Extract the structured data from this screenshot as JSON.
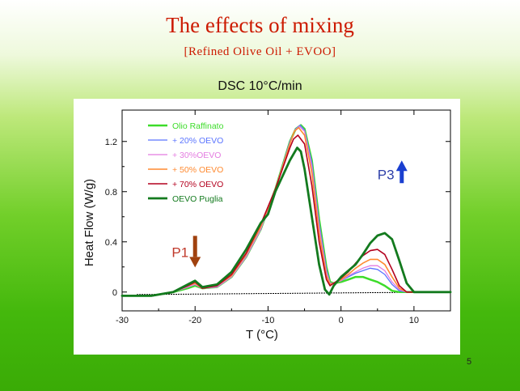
{
  "slide": {
    "title": "The effects of mixing",
    "subtitle": "[Refined Olive Oil + EVOO]",
    "page_number": "5"
  },
  "chart_data": {
    "type": "line",
    "title": "DSC 10°C/min",
    "xlabel": "T  (°C)",
    "ylabel": "Heat Flow  (W/g)",
    "xlim": [
      -30,
      15
    ],
    "ylim": [
      -0.15,
      1.45
    ],
    "xticks": [
      -30,
      -20,
      -10,
      0,
      10
    ],
    "yticks": [
      0,
      0.4,
      0.8,
      1.2
    ],
    "ytick_labels": [
      "0",
      "0.4",
      "0.8",
      "1.2"
    ],
    "legend_position": "top-left",
    "annotations": [
      {
        "text": "P1",
        "x": -20,
        "y": 0.28,
        "arrow": "down",
        "color": "#c0392b",
        "arrow_color": "#a0410e"
      },
      {
        "text": "P3",
        "x": 5,
        "y": 0.9,
        "arrow": "up",
        "color": "#2e3fa8",
        "arrow_color": "#1a3fd0"
      }
    ],
    "baseline": {
      "x": [
        -28,
        15
      ],
      "y": [
        -0.02,
        0.0
      ],
      "color": "#000000"
    },
    "series": [
      {
        "name": "Olio Raffinato",
        "color": "#3ddc2a",
        "width": 2.5,
        "x": [
          -30,
          -26,
          -23,
          -21,
          -20,
          -19,
          -17,
          -15,
          -13,
          -11,
          -9,
          -7,
          -6.2,
          -5.5,
          -5,
          -4,
          -3,
          -2,
          -1.5,
          -1,
          0,
          1,
          2,
          3,
          4,
          5,
          6,
          7,
          8,
          9,
          10,
          12,
          15
        ],
        "y": [
          -0.03,
          -0.03,
          0.0,
          0.03,
          0.05,
          0.03,
          0.04,
          0.12,
          0.28,
          0.5,
          0.82,
          1.2,
          1.3,
          1.33,
          1.3,
          1.05,
          0.58,
          0.2,
          0.08,
          0.07,
          0.08,
          0.1,
          0.12,
          0.12,
          0.1,
          0.08,
          0.05,
          0.01,
          0.0,
          0.0,
          0.0,
          0.0,
          0.0
        ]
      },
      {
        "name": "+ 20% OEVO",
        "color": "#5a74ff",
        "width": 1.3,
        "x": [
          -30,
          -26,
          -23,
          -21,
          -20,
          -19,
          -17,
          -15,
          -13,
          -11,
          -9,
          -7,
          -6.2,
          -5.6,
          -5,
          -4,
          -3,
          -2,
          -1.5,
          -1,
          0,
          1,
          2,
          3,
          4,
          5,
          6,
          7,
          8,
          9,
          10,
          12,
          15
        ],
        "y": [
          -0.03,
          -0.03,
          0.0,
          0.04,
          0.06,
          0.03,
          0.04,
          0.12,
          0.28,
          0.5,
          0.82,
          1.2,
          1.3,
          1.33,
          1.29,
          1.03,
          0.55,
          0.18,
          0.07,
          0.07,
          0.09,
          0.12,
          0.15,
          0.17,
          0.19,
          0.18,
          0.14,
          0.06,
          0.01,
          0.0,
          0.0,
          0.0,
          0.0
        ]
      },
      {
        "name": "+ 30%OEVO",
        "color": "#e47be0",
        "width": 1.3,
        "x": [
          -30,
          -26,
          -23,
          -21,
          -20,
          -19,
          -17,
          -15,
          -13,
          -11,
          -9,
          -7,
          -6.3,
          -5.7,
          -5,
          -4,
          -3,
          -2,
          -1.5,
          -1,
          0,
          1,
          2,
          3,
          4,
          5,
          6,
          7,
          8,
          9,
          10,
          12,
          15
        ],
        "y": [
          -0.03,
          -0.03,
          0.0,
          0.04,
          0.06,
          0.03,
          0.04,
          0.12,
          0.28,
          0.5,
          0.82,
          1.19,
          1.29,
          1.32,
          1.28,
          1.0,
          0.52,
          0.16,
          0.07,
          0.07,
          0.09,
          0.13,
          0.16,
          0.19,
          0.21,
          0.21,
          0.17,
          0.08,
          0.02,
          0.0,
          0.0,
          0.0,
          0.0
        ]
      },
      {
        "name": "+ 50% OEVO",
        "color": "#ff8a30",
        "width": 1.6,
        "x": [
          -30,
          -26,
          -23,
          -21,
          -20,
          -19,
          -17,
          -15,
          -13,
          -11,
          -9,
          -7,
          -6.4,
          -5.8,
          -5,
          -4,
          -3,
          -2,
          -1.5,
          -1,
          0,
          1,
          2,
          3,
          4,
          5,
          6,
          7,
          8,
          9,
          10,
          12,
          15
        ],
        "y": [
          -0.03,
          -0.03,
          0.0,
          0.05,
          0.07,
          0.03,
          0.05,
          0.13,
          0.3,
          0.52,
          0.82,
          1.18,
          1.28,
          1.31,
          1.25,
          0.95,
          0.47,
          0.13,
          0.06,
          0.07,
          0.1,
          0.14,
          0.19,
          0.23,
          0.26,
          0.26,
          0.22,
          0.12,
          0.03,
          0.0,
          0.0,
          0.0,
          0.0
        ]
      },
      {
        "name": "+ 70% OEVO",
        "color": "#b3001e",
        "width": 1.6,
        "x": [
          -30,
          -26,
          -23,
          -21,
          -20,
          -19,
          -17,
          -15,
          -13,
          -11,
          -9,
          -7,
          -6.5,
          -5.9,
          -5,
          -4,
          -3,
          -2,
          -1.5,
          -1,
          0,
          1,
          2,
          3,
          4,
          5,
          6,
          7,
          8,
          9,
          10,
          12,
          15
        ],
        "y": [
          -0.03,
          -0.03,
          0.0,
          0.05,
          0.08,
          0.03,
          0.05,
          0.14,
          0.31,
          0.54,
          0.82,
          1.15,
          1.22,
          1.25,
          1.18,
          0.85,
          0.4,
          0.1,
          0.05,
          0.07,
          0.11,
          0.16,
          0.23,
          0.29,
          0.33,
          0.34,
          0.3,
          0.18,
          0.05,
          0.0,
          0.0,
          0.0,
          0.0
        ]
      },
      {
        "name": "OEVO Puglia",
        "color": "#137a1e",
        "width": 2.8,
        "x": [
          -30,
          -26,
          -23,
          -21,
          -20,
          -19,
          -17,
          -15,
          -13,
          -11,
          -10,
          -9,
          -7,
          -6,
          -5.5,
          -5,
          -4,
          -3,
          -2.2,
          -1.6,
          -1,
          0,
          1,
          2,
          3,
          4,
          5,
          6,
          7,
          8,
          9,
          10,
          12,
          15
        ],
        "y": [
          -0.03,
          -0.03,
          0.0,
          0.06,
          0.09,
          0.04,
          0.06,
          0.16,
          0.34,
          0.55,
          0.62,
          0.8,
          1.05,
          1.15,
          1.12,
          0.98,
          0.6,
          0.22,
          0.02,
          -0.02,
          0.05,
          0.12,
          0.17,
          0.22,
          0.3,
          0.39,
          0.45,
          0.47,
          0.42,
          0.25,
          0.07,
          0.0,
          0.0,
          0.0
        ]
      }
    ]
  }
}
